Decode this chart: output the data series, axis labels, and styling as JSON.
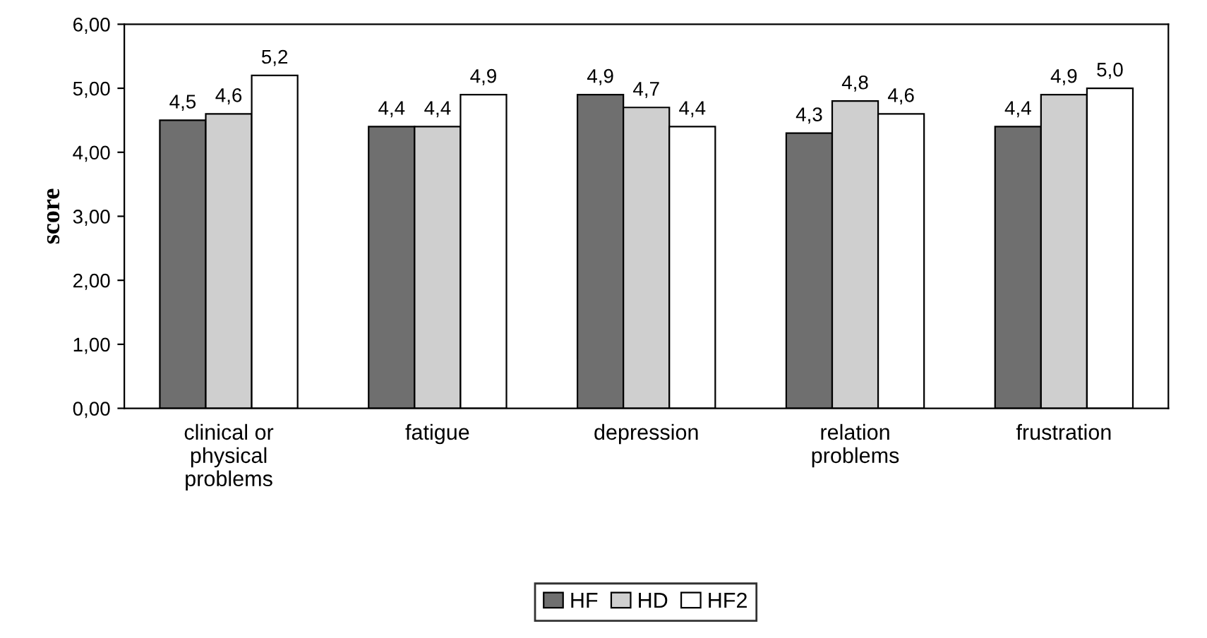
{
  "chart_data": {
    "type": "bar",
    "ylabel": "score",
    "categories": [
      "clinical or\nphysical\nproblems",
      "fatigue",
      "depression",
      "relation\nproblems",
      "frustration"
    ],
    "series": [
      {
        "name": "HF",
        "color": "#6f6f6f",
        "values": [
          4.5,
          4.4,
          4.9,
          4.3,
          4.4
        ],
        "value_labels": [
          "4,5",
          "4,4",
          "4,9",
          "4,3",
          "4,4"
        ]
      },
      {
        "name": "HD",
        "color": "#cfcfcf",
        "values": [
          4.6,
          4.4,
          4.7,
          4.8,
          4.9
        ],
        "value_labels": [
          "4,6",
          "4,4",
          "4,7",
          "4,8",
          "4,9"
        ]
      },
      {
        "name": "HF2",
        "color": "#ffffff",
        "values": [
          5.2,
          4.9,
          4.4,
          4.6,
          5.0
        ],
        "value_labels": [
          "5,2",
          "4,9",
          "4,4",
          "4,6",
          "5,0"
        ]
      }
    ],
    "ylim": [
      0,
      6
    ],
    "yticks": [
      {
        "value": 0,
        "label": "0,00"
      },
      {
        "value": 1,
        "label": "1,00"
      },
      {
        "value": 2,
        "label": "2,00"
      },
      {
        "value": 3,
        "label": "3,00"
      },
      {
        "value": 4,
        "label": "4,00"
      },
      {
        "value": 5,
        "label": "5,00"
      },
      {
        "value": 6,
        "label": "6,00"
      }
    ],
    "grid": false,
    "legend": "bottom"
  }
}
